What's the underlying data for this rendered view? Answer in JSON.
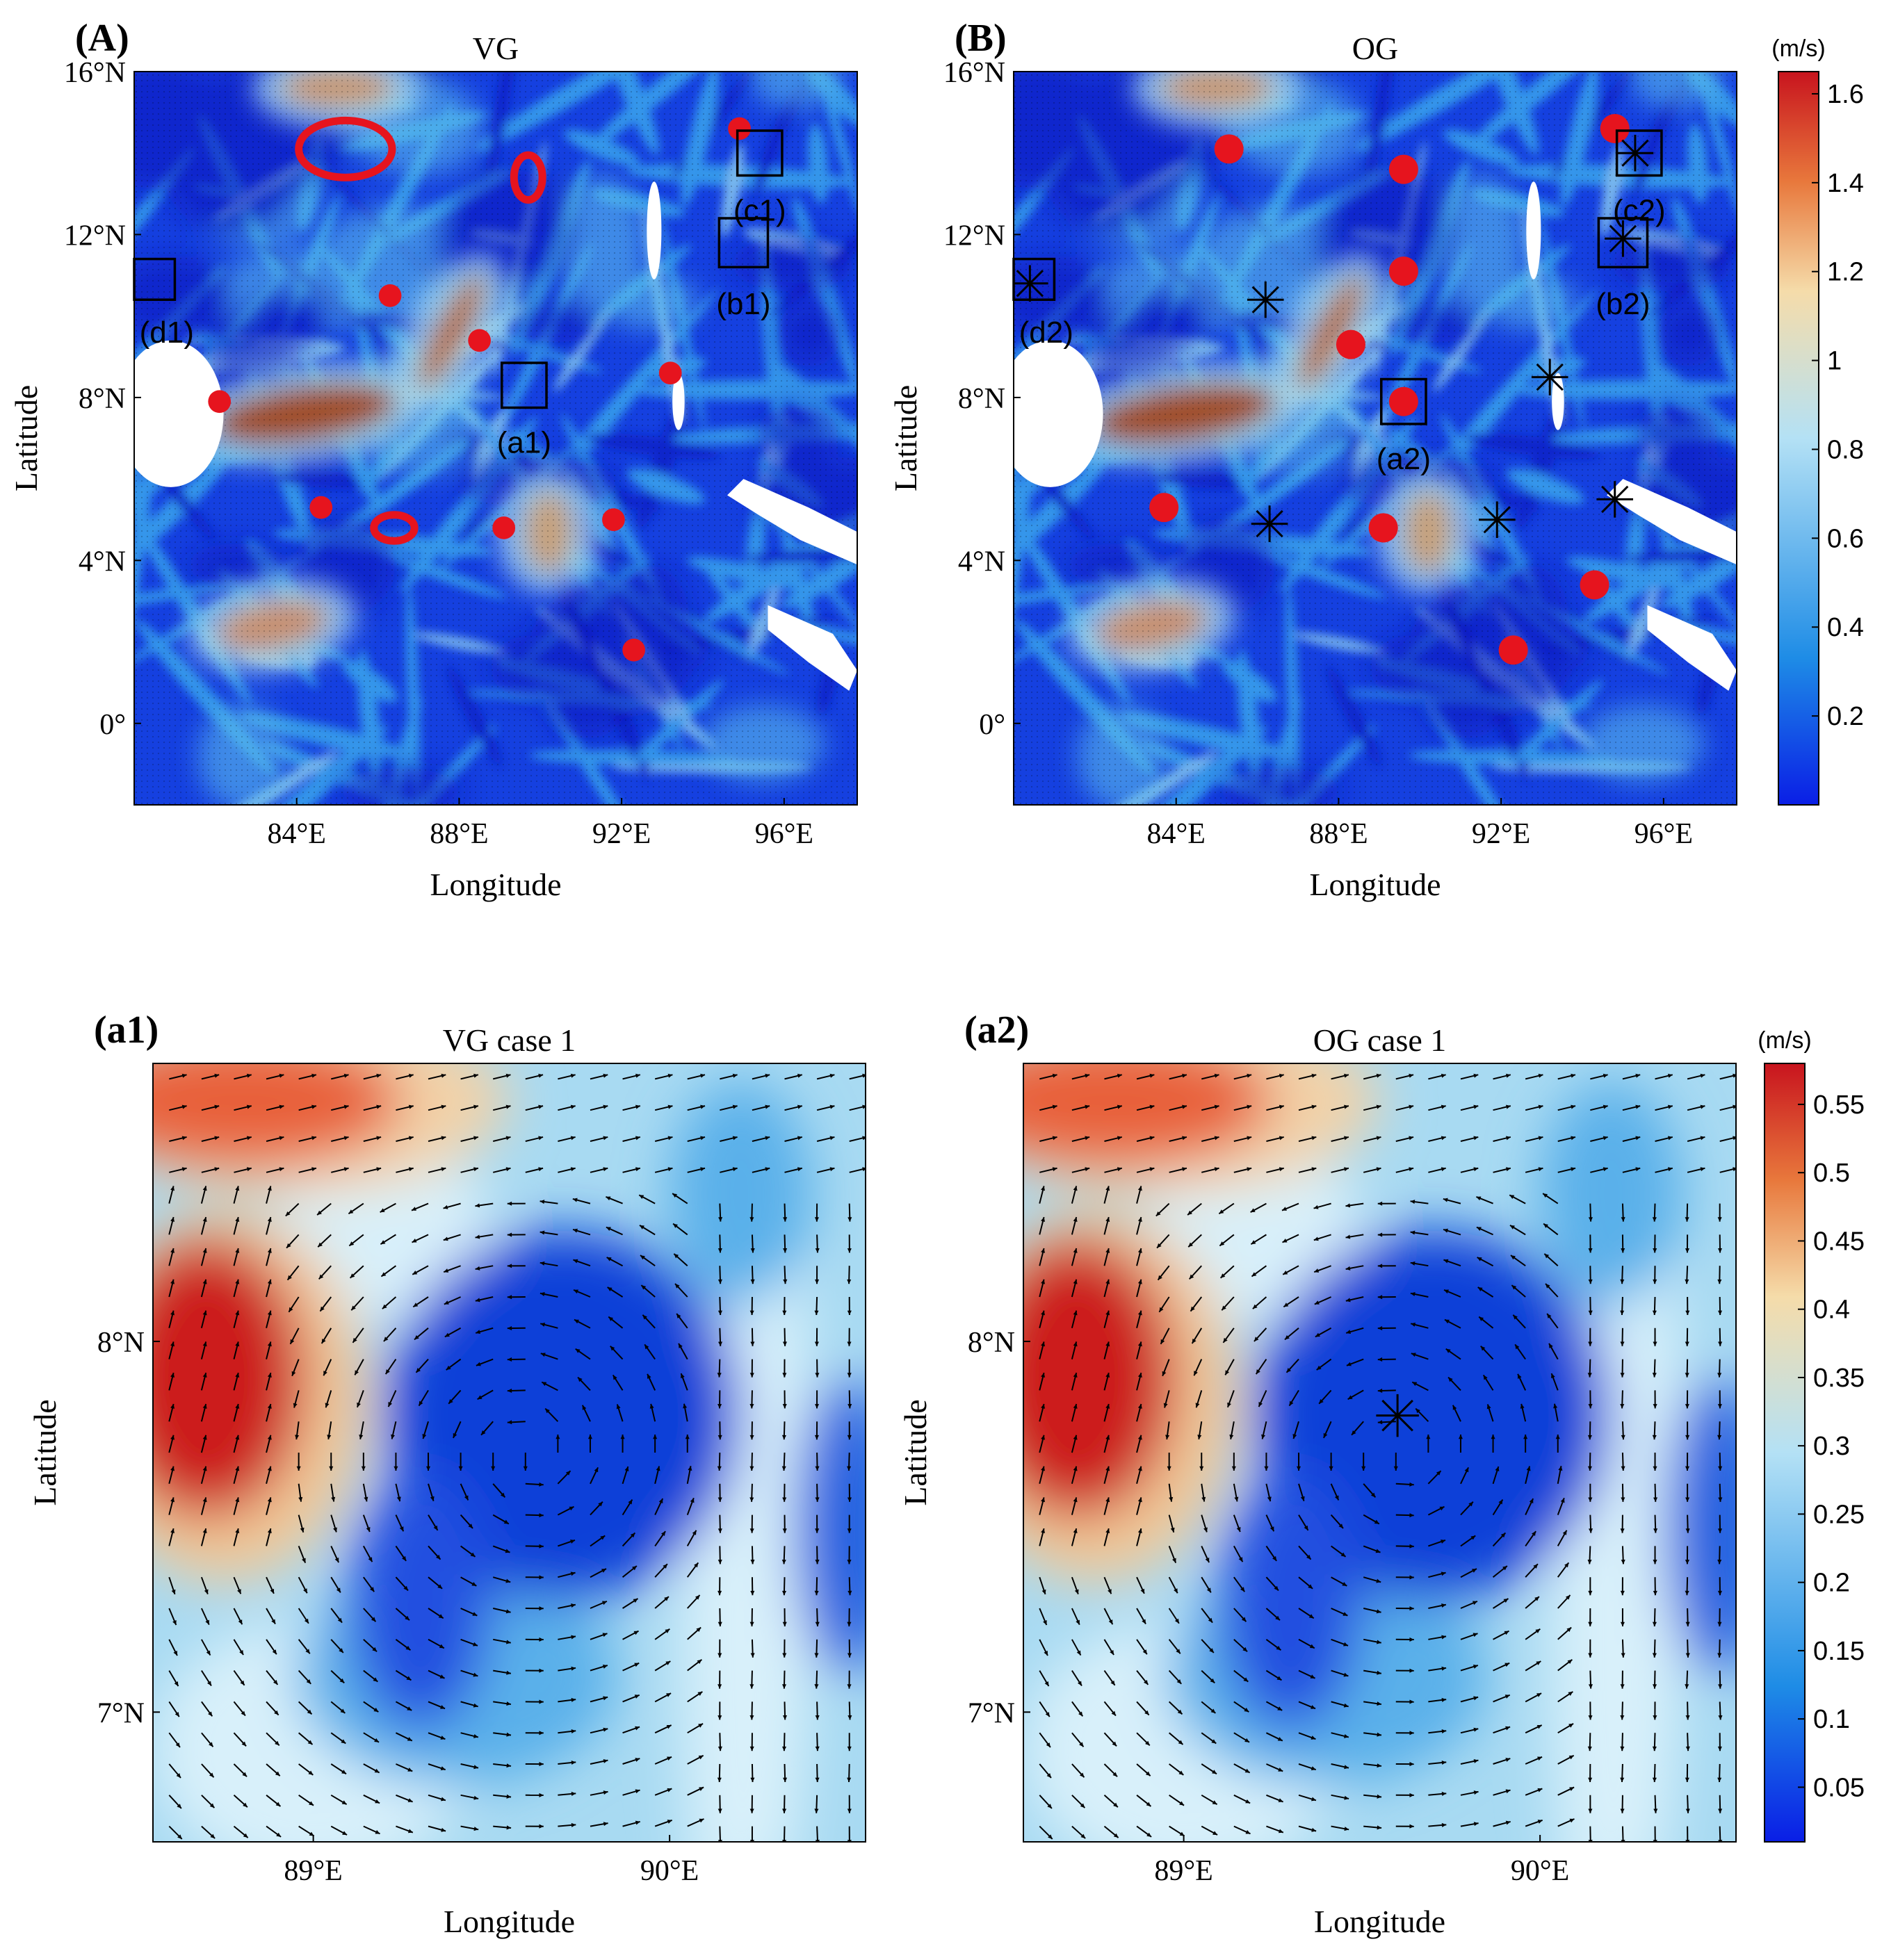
{
  "colors": {
    "low": "#0a1ee6",
    "mid_low": "#1e8ce6",
    "mid": "#b4e1f5",
    "mid_high": "#f5dcaa",
    "high": "#c8141e",
    "eddy_marker": "#e6141e",
    "cyclone_marker": "#000000",
    "land": "#ffffff"
  },
  "chart_data": [
    {
      "id": "A",
      "type": "heatmap",
      "panel_letter": "(A)",
      "title": "VG",
      "xlabel": "Longitude",
      "ylabel": "Latitude",
      "xlim": [
        80,
        97.8
      ],
      "ylim": [
        -2,
        16
      ],
      "xticks": [
        84,
        88,
        92,
        96
      ],
      "xtick_labels": [
        "84°E",
        "88°E",
        "92°E",
        "96°E"
      ],
      "yticks": [
        0,
        4,
        8,
        12,
        16
      ],
      "ytick_labels": [
        "0°",
        "4°N",
        "8°N",
        "12°N",
        "16°N"
      ],
      "colorbar": "cb1",
      "eddy_dots": [
        {
          "lon": 84.6,
          "lat": 5.3,
          "r": 0.28
        },
        {
          "lon": 82.1,
          "lat": 7.9,
          "r": 0.28
        },
        {
          "lon": 86.3,
          "lat": 10.5,
          "r": 0.28
        },
        {
          "lon": 88.5,
          "lat": 9.4,
          "r": 0.28
        },
        {
          "lon": 89.1,
          "lat": 4.8,
          "r": 0.28
        },
        {
          "lon": 91.8,
          "lat": 5.0,
          "r": 0.28
        },
        {
          "lon": 93.2,
          "lat": 8.6,
          "r": 0.28
        },
        {
          "lon": 92.3,
          "lat": 1.8,
          "r": 0.28
        },
        {
          "lon": 94.9,
          "lat": 14.6,
          "r": 0.28
        }
      ],
      "eddy_rings": [
        {
          "lon": 85.2,
          "lat": 14.1,
          "rx": 1.15,
          "ry": 0.7
        },
        {
          "lon": 89.7,
          "lat": 13.4,
          "rx": 0.35,
          "ry": 0.55
        },
        {
          "lon": 86.4,
          "lat": 4.8,
          "rx": 0.5,
          "ry": 0.32
        }
      ],
      "stars": [],
      "boxes": [
        {
          "label": "(a1)",
          "lon": 89.6,
          "lat": 8.3,
          "half": 0.55,
          "label_lon": 89.6,
          "label_lat": 6.9
        },
        {
          "label": "(b1)",
          "lon": 95.0,
          "lat": 11.8,
          "half": 0.6,
          "label_lon": 95.0,
          "label_lat": 10.3
        },
        {
          "label": "(c1)",
          "lon": 95.4,
          "lat": 14.0,
          "half": 0.55,
          "label_lon": 95.4,
          "label_lat": 12.6
        },
        {
          "label": "(d1)",
          "lon": 80.5,
          "lat": 10.9,
          "half": 0.5,
          "label_lon": 80.8,
          "label_lat": 9.6
        }
      ],
      "jets": [
        {
          "lon": 84.2,
          "lat": 7.6,
          "rx": 2.3,
          "ry": 0.7,
          "rot": -8,
          "c": "#a0502a"
        },
        {
          "lon": 87.8,
          "lat": 9.6,
          "rx": 0.4,
          "ry": 1.6,
          "rot": 28,
          "c": "#b8703c"
        },
        {
          "lon": 85.0,
          "lat": 15.6,
          "rx": 1.4,
          "ry": 0.5,
          "rot": 0,
          "c": "#c89670"
        },
        {
          "lon": 90.2,
          "lat": 4.7,
          "rx": 0.6,
          "ry": 1.0,
          "rot": 0,
          "c": "#c8a078"
        },
        {
          "lon": 83.4,
          "lat": 2.4,
          "rx": 1.4,
          "ry": 0.6,
          "rot": -10,
          "c": "#c89070"
        }
      ],
      "land": [
        {
          "shape": "ellipse",
          "lon": 80.9,
          "lat": 7.6,
          "rx": 1.3,
          "ry": 1.8
        },
        {
          "shape": "poly",
          "pts": [
            [
              95.0,
              6.0
            ],
            [
              96.6,
              5.3
            ],
            [
              97.8,
              4.7
            ],
            [
              97.8,
              3.9
            ],
            [
              96.4,
              4.5
            ],
            [
              95.4,
              5.1
            ],
            [
              94.6,
              5.6
            ]
          ]
        },
        {
          "shape": "poly",
          "pts": [
            [
              95.6,
              2.9
            ],
            [
              97.2,
              2.2
            ],
            [
              97.8,
              1.3
            ],
            [
              97.6,
              0.8
            ],
            [
              96.6,
              1.5
            ],
            [
              95.6,
              2.3
            ]
          ]
        },
        {
          "shape": "ellipse",
          "lon": 92.8,
          "lat": 12.1,
          "rx": 0.18,
          "ry": 1.2
        },
        {
          "shape": "ellipse",
          "lon": 93.4,
          "lat": 7.9,
          "rx": 0.15,
          "ry": 0.7
        }
      ]
    },
    {
      "id": "B",
      "type": "heatmap",
      "panel_letter": "(B)",
      "title": "OG",
      "xlabel": "Longitude",
      "ylabel": "Latitude",
      "xlim": [
        80,
        97.8
      ],
      "ylim": [
        -2,
        16
      ],
      "xticks": [
        84,
        88,
        92,
        96
      ],
      "xtick_labels": [
        "84°E",
        "88°E",
        "92°E",
        "96°E"
      ],
      "yticks": [
        0,
        4,
        8,
        12,
        16
      ],
      "ytick_labels": [
        "0°",
        "4°N",
        "8°N",
        "12°N",
        "16°N"
      ],
      "colorbar": "cb1",
      "eddy_dots": [
        {
          "lon": 85.3,
          "lat": 14.1,
          "r": 0.36
        },
        {
          "lon": 89.6,
          "lat": 13.6,
          "r": 0.36
        },
        {
          "lon": 89.6,
          "lat": 11.1,
          "r": 0.36
        },
        {
          "lon": 88.3,
          "lat": 9.3,
          "r": 0.36
        },
        {
          "lon": 89.6,
          "lat": 7.9,
          "r": 0.36
        },
        {
          "lon": 83.7,
          "lat": 5.3,
          "r": 0.36
        },
        {
          "lon": 89.1,
          "lat": 4.8,
          "r": 0.36
        },
        {
          "lon": 94.3,
          "lat": 3.4,
          "r": 0.36
        },
        {
          "lon": 92.3,
          "lat": 1.8,
          "r": 0.36
        },
        {
          "lon": 94.8,
          "lat": 14.6,
          "r": 0.36
        }
      ],
      "eddy_rings": [],
      "stars": [
        {
          "lon": 86.2,
          "lat": 10.4,
          "r": 0.45
        },
        {
          "lon": 86.3,
          "lat": 4.9,
          "r": 0.45
        },
        {
          "lon": 91.9,
          "lat": 5.0,
          "r": 0.45
        },
        {
          "lon": 93.2,
          "lat": 8.5,
          "r": 0.45
        },
        {
          "lon": 94.8,
          "lat": 5.5,
          "r": 0.45
        },
        {
          "lon": 95.3,
          "lat": 14.0,
          "r": 0.45
        },
        {
          "lon": 95.0,
          "lat": 11.9,
          "r": 0.45
        },
        {
          "lon": 80.4,
          "lat": 10.8,
          "r": 0.45
        }
      ],
      "boxes": [
        {
          "label": "(a2)",
          "lon": 89.6,
          "lat": 7.9,
          "half": 0.55,
          "label_lon": 89.6,
          "label_lat": 6.5
        },
        {
          "label": "(b2)",
          "lon": 95.0,
          "lat": 11.8,
          "half": 0.6,
          "label_lon": 95.0,
          "label_lat": 10.3
        },
        {
          "label": "(c2)",
          "lon": 95.4,
          "lat": 14.0,
          "half": 0.55,
          "label_lon": 95.4,
          "label_lat": 12.6
        },
        {
          "label": "(d2)",
          "lon": 80.5,
          "lat": 10.9,
          "half": 0.5,
          "label_lon": 80.8,
          "label_lat": 9.6
        }
      ],
      "jets": [
        {
          "lon": 84.2,
          "lat": 7.6,
          "rx": 2.3,
          "ry": 0.7,
          "rot": -8,
          "c": "#a0502a"
        },
        {
          "lon": 87.8,
          "lat": 9.6,
          "rx": 0.4,
          "ry": 1.6,
          "rot": 28,
          "c": "#b8703c"
        },
        {
          "lon": 85.0,
          "lat": 15.6,
          "rx": 1.4,
          "ry": 0.5,
          "rot": 0,
          "c": "#c89670"
        },
        {
          "lon": 90.2,
          "lat": 4.7,
          "rx": 0.6,
          "ry": 1.0,
          "rot": 0,
          "c": "#c8a078"
        },
        {
          "lon": 83.4,
          "lat": 2.4,
          "rx": 1.4,
          "ry": 0.6,
          "rot": -10,
          "c": "#c89070"
        }
      ],
      "land": [
        {
          "shape": "ellipse",
          "lon": 80.9,
          "lat": 7.6,
          "rx": 1.3,
          "ry": 1.8
        },
        {
          "shape": "poly",
          "pts": [
            [
              95.0,
              6.0
            ],
            [
              96.6,
              5.3
            ],
            [
              97.8,
              4.7
            ],
            [
              97.8,
              3.9
            ],
            [
              96.4,
              4.5
            ],
            [
              95.4,
              5.1
            ],
            [
              94.6,
              5.6
            ]
          ]
        },
        {
          "shape": "poly",
          "pts": [
            [
              95.6,
              2.9
            ],
            [
              97.2,
              2.2
            ],
            [
              97.8,
              1.3
            ],
            [
              97.6,
              0.8
            ],
            [
              96.6,
              1.5
            ],
            [
              95.6,
              2.3
            ]
          ]
        },
        {
          "shape": "ellipse",
          "lon": 92.8,
          "lat": 12.1,
          "rx": 0.18,
          "ry": 1.2
        },
        {
          "shape": "ellipse",
          "lon": 93.4,
          "lat": 7.9,
          "rx": 0.15,
          "ry": 0.7
        }
      ]
    },
    {
      "id": "a1",
      "type": "heatmap",
      "panel_letter": "(a1)",
      "title": "VG case 1",
      "xlabel": "Longitude",
      "ylabel": "Latitude",
      "xlim": [
        88.55,
        90.55
      ],
      "ylim": [
        6.65,
        8.75
      ],
      "xticks": [
        89,
        90
      ],
      "xtick_labels": [
        "89°E",
        "90°E"
      ],
      "yticks": [
        7,
        8
      ],
      "ytick_labels": [
        "7°N",
        "8°N"
      ],
      "colorbar": "cb2",
      "stars": [],
      "field": {
        "center_lon": 89.6,
        "center_lat": 7.7,
        "hot_spots": [
          {
            "lon": 88.7,
            "lat": 7.9,
            "rx": 0.28,
            "ry": 0.38,
            "c": "#cc1a1e"
          },
          {
            "lon": 88.8,
            "lat": 8.65,
            "rx": 0.45,
            "ry": 0.18,
            "c": "#e8603a"
          }
        ],
        "cold_spots": [
          {
            "lon": 89.7,
            "lat": 7.8,
            "rx": 0.5,
            "ry": 0.5,
            "c": "#1040d8"
          },
          {
            "lon": 89.3,
            "lat": 7.3,
            "rx": 0.2,
            "ry": 0.35,
            "c": "#2050e0"
          },
          {
            "lon": 90.5,
            "lat": 7.5,
            "rx": 0.15,
            "ry": 0.4,
            "c": "#2060e0"
          }
        ]
      }
    },
    {
      "id": "a2",
      "type": "heatmap",
      "panel_letter": "(a2)",
      "title": "OG case 1",
      "xlabel": "Longitude",
      "ylabel": "Latitude",
      "xlim": [
        88.55,
        90.55
      ],
      "ylim": [
        6.65,
        8.75
      ],
      "xticks": [
        89,
        90
      ],
      "xtick_labels": [
        "89°E",
        "90°E"
      ],
      "yticks": [
        7,
        8
      ],
      "ytick_labels": [
        "7°N",
        "8°N"
      ],
      "colorbar": "cb2",
      "stars": [
        {
          "lon": 89.6,
          "lat": 7.8,
          "r": 0.06
        }
      ],
      "field": {
        "center_lon": 89.6,
        "center_lat": 7.7,
        "hot_spots": [
          {
            "lon": 88.7,
            "lat": 7.9,
            "rx": 0.28,
            "ry": 0.38,
            "c": "#cc1a1e"
          },
          {
            "lon": 88.8,
            "lat": 8.65,
            "rx": 0.45,
            "ry": 0.18,
            "c": "#e8603a"
          }
        ],
        "cold_spots": [
          {
            "lon": 89.7,
            "lat": 7.8,
            "rx": 0.5,
            "ry": 0.5,
            "c": "#1040d8"
          },
          {
            "lon": 89.3,
            "lat": 7.3,
            "rx": 0.2,
            "ry": 0.35,
            "c": "#2050e0"
          },
          {
            "lon": 90.5,
            "lat": 7.5,
            "rx": 0.15,
            "ry": 0.4,
            "c": "#2060e0"
          }
        ]
      }
    }
  ],
  "colorbars": {
    "cb1": {
      "unit": "(m/s)",
      "range": [
        0,
        1.65
      ],
      "ticks": [
        0.2,
        0.4,
        0.6,
        0.8,
        1,
        1.2,
        1.4,
        1.6
      ],
      "tick_labels": [
        "0.2",
        "0.4",
        "0.6",
        "0.8",
        "1",
        "1.2",
        "1.4",
        "1.6"
      ]
    },
    "cb2": {
      "unit": "(m/s)",
      "range": [
        0.01,
        0.58
      ],
      "ticks": [
        0.05,
        0.1,
        0.15,
        0.2,
        0.25,
        0.3,
        0.35,
        0.4,
        0.45,
        0.5,
        0.55
      ],
      "tick_labels": [
        "0.05",
        "0.1",
        "0.15",
        "0.2",
        "0.25",
        "0.3",
        "0.35",
        "0.4",
        "0.45",
        "0.5",
        "0.55"
      ]
    }
  }
}
